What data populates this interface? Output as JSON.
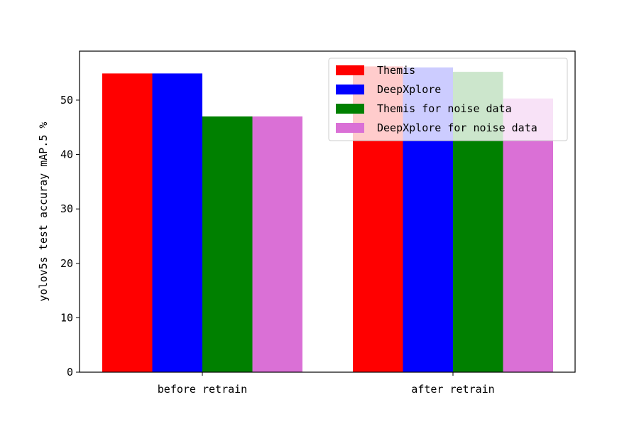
{
  "chart_data": {
    "type": "bar",
    "title": "",
    "xlabel": "",
    "ylabel": "yolov5s test accuray mAP.5 %",
    "categories": [
      "before retrain",
      "after retrain"
    ],
    "series": [
      {
        "name": "Themis",
        "color": "#ff0000",
        "values": [
          54.9,
          56.2
        ]
      },
      {
        "name": "DeepXplore",
        "color": "#0000ff",
        "values": [
          54.9,
          56.0
        ]
      },
      {
        "name": "Themis for noise data",
        "color": "#008000",
        "values": [
          47.0,
          55.2
        ]
      },
      {
        "name": "DeepXplore for noise data",
        "color": "#da70d6",
        "values": [
          47.0,
          50.3
        ]
      }
    ],
    "ylim": [
      0,
      59
    ],
    "yticks": [
      0,
      10,
      20,
      30,
      40,
      50
    ],
    "grid": false,
    "legend_position": "top-right"
  }
}
